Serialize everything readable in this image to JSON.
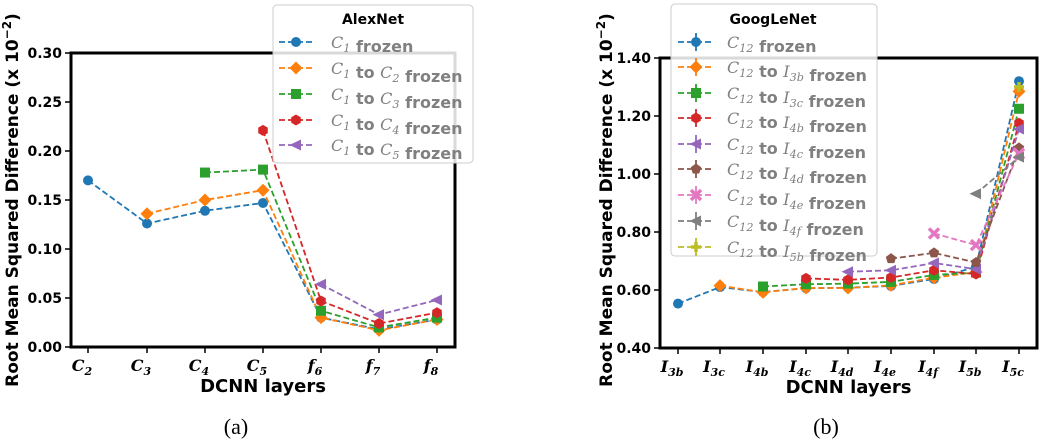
{
  "chart_data": [
    {
      "type": "line",
      "title": "AlexNet",
      "caption": "(a)",
      "xlabel": "DCNN layers",
      "ylabel": "Root Mean Squared Difference (x 10",
      "ylabel_exp": "−2",
      "ylabel_close": ")",
      "ylim": [
        0,
        0.3
      ],
      "yticks": [
        "0.00",
        "0.05",
        "0.10",
        "0.15",
        "0.20",
        "0.25",
        "0.30"
      ],
      "ytick_values": [
        0,
        0.05,
        0.1,
        0.15,
        0.2,
        0.25,
        0.3
      ],
      "categories": [
        [
          "C",
          "2"
        ],
        [
          "C",
          "3"
        ],
        [
          "C",
          "4"
        ],
        [
          "C",
          "5"
        ],
        [
          "f",
          "6"
        ],
        [
          "f",
          "7"
        ],
        [
          "f",
          "8"
        ]
      ],
      "legend_position": "top-right",
      "series": [
        {
          "label": [
            [
              "C",
              "1"
            ],
            null,
            " frozen"
          ],
          "color": "#1f77b4",
          "marker": "circle",
          "values": [
            0.17,
            0.126,
            0.139,
            0.147,
            0.03,
            0.018,
            0.028
          ]
        },
        {
          "label": [
            [
              "C",
              "1"
            ],
            [
              "C",
              "2"
            ],
            " frozen"
          ],
          "color": "#ff7f0e",
          "marker": "diamond",
          "values": [
            null,
            0.136,
            0.15,
            0.16,
            0.03,
            0.017,
            0.028
          ]
        },
        {
          "label": [
            [
              "C",
              "1"
            ],
            [
              "C",
              "3"
            ],
            " frozen"
          ],
          "color": "#2ca02c",
          "marker": "square",
          "values": [
            null,
            null,
            0.178,
            0.181,
            0.037,
            0.02,
            0.03
          ]
        },
        {
          "label": [
            [
              "C",
              "1"
            ],
            [
              "C",
              "4"
            ],
            " frozen"
          ],
          "color": "#d62728",
          "marker": "hexagon",
          "values": [
            null,
            null,
            null,
            0.221,
            0.047,
            0.024,
            0.035
          ]
        },
        {
          "label": [
            [
              "C",
              "1"
            ],
            [
              "C",
              "5"
            ],
            " frozen"
          ],
          "color": "#9467bd",
          "marker": "tri-left",
          "values": [
            null,
            null,
            null,
            null,
            0.064,
            0.033,
            0.048
          ]
        }
      ]
    },
    {
      "type": "line",
      "title": "GoogLeNet",
      "caption": "(b)",
      "xlabel": "DCNN layers",
      "ylabel": "Root Mean Squared Difference (x 10",
      "ylabel_exp": "−2",
      "ylabel_close": ")",
      "ylim": [
        0.4,
        1.4
      ],
      "yticks": [
        "0.40",
        "0.60",
        "0.80",
        "1.00",
        "1.20",
        "1.40"
      ],
      "ytick_values": [
        0.4,
        0.6,
        0.8,
        1.0,
        1.2,
        1.4
      ],
      "categories": [
        [
          "I",
          "3b"
        ],
        [
          "I",
          "3c"
        ],
        [
          "I",
          "4b"
        ],
        [
          "I",
          "4c"
        ],
        [
          "I",
          "4d"
        ],
        [
          "I",
          "4e"
        ],
        [
          "I",
          "4f"
        ],
        [
          "I",
          "5b"
        ],
        [
          "I",
          "5c"
        ]
      ],
      "legend_position": "top-left",
      "series": [
        {
          "label": [
            [
              "C",
              "12"
            ],
            null,
            " frozen"
          ],
          "color": "#1f77b4",
          "marker": "circle",
          "values": [
            0.553,
            0.61,
            0.593,
            0.606,
            0.608,
            0.614,
            0.638,
            0.68,
            1.32
          ]
        },
        {
          "label": [
            [
              "C",
              "12"
            ],
            [
              "I",
              "3b"
            ],
            " frozen"
          ],
          "color": "#ff7f0e",
          "marker": "diamond",
          "values": [
            null,
            0.615,
            0.592,
            0.607,
            0.607,
            0.616,
            0.642,
            0.662,
            1.285
          ]
        },
        {
          "label": [
            [
              "C",
              "12"
            ],
            [
              "I",
              "3c"
            ],
            " frozen"
          ],
          "color": "#2ca02c",
          "marker": "square",
          "values": [
            null,
            null,
            0.612,
            0.62,
            0.622,
            0.628,
            0.652,
            0.66,
            1.225
          ]
        },
        {
          "label": [
            [
              "C",
              "12"
            ],
            [
              "I",
              "4b"
            ],
            " frozen"
          ],
          "color": "#d62728",
          "marker": "hexagon",
          "values": [
            null,
            null,
            null,
            0.64,
            0.635,
            0.643,
            0.668,
            0.655,
            1.175
          ]
        },
        {
          "label": [
            [
              "C",
              "12"
            ],
            [
              "I",
              "4c"
            ],
            " frozen"
          ],
          "color": "#9467bd",
          "marker": "tri-left",
          "values": [
            null,
            null,
            null,
            null,
            0.663,
            0.668,
            0.693,
            0.672,
            1.155
          ]
        },
        {
          "label": [
            [
              "C",
              "12"
            ],
            [
              "I",
              "4d"
            ],
            " frozen"
          ],
          "color": "#8c564b",
          "marker": "pentagon",
          "values": [
            null,
            null,
            null,
            null,
            null,
            0.708,
            0.728,
            0.695,
            1.09
          ]
        },
        {
          "label": [
            [
              "C",
              "12"
            ],
            [
              "I",
              "4e"
            ],
            " frozen"
          ],
          "color": "#e377c2",
          "marker": "x",
          "values": [
            null,
            null,
            null,
            null,
            null,
            null,
            0.795,
            0.755,
            1.07
          ]
        },
        {
          "label": [
            [
              "C",
              "12"
            ],
            [
              "I",
              "4f"
            ],
            " frozen"
          ],
          "color": "#7f7f7f",
          "marker": "tri-left",
          "values": [
            null,
            null,
            null,
            null,
            null,
            null,
            null,
            0.932,
            1.058
          ]
        },
        {
          "label": [
            [
              "C",
              "12"
            ],
            [
              "I",
              "5b"
            ],
            " frozen"
          ],
          "color": "#bcbd22",
          "marker": "plus",
          "values": [
            null,
            null,
            null,
            null,
            null,
            null,
            null,
            null,
            1.3
          ]
        }
      ]
    }
  ]
}
